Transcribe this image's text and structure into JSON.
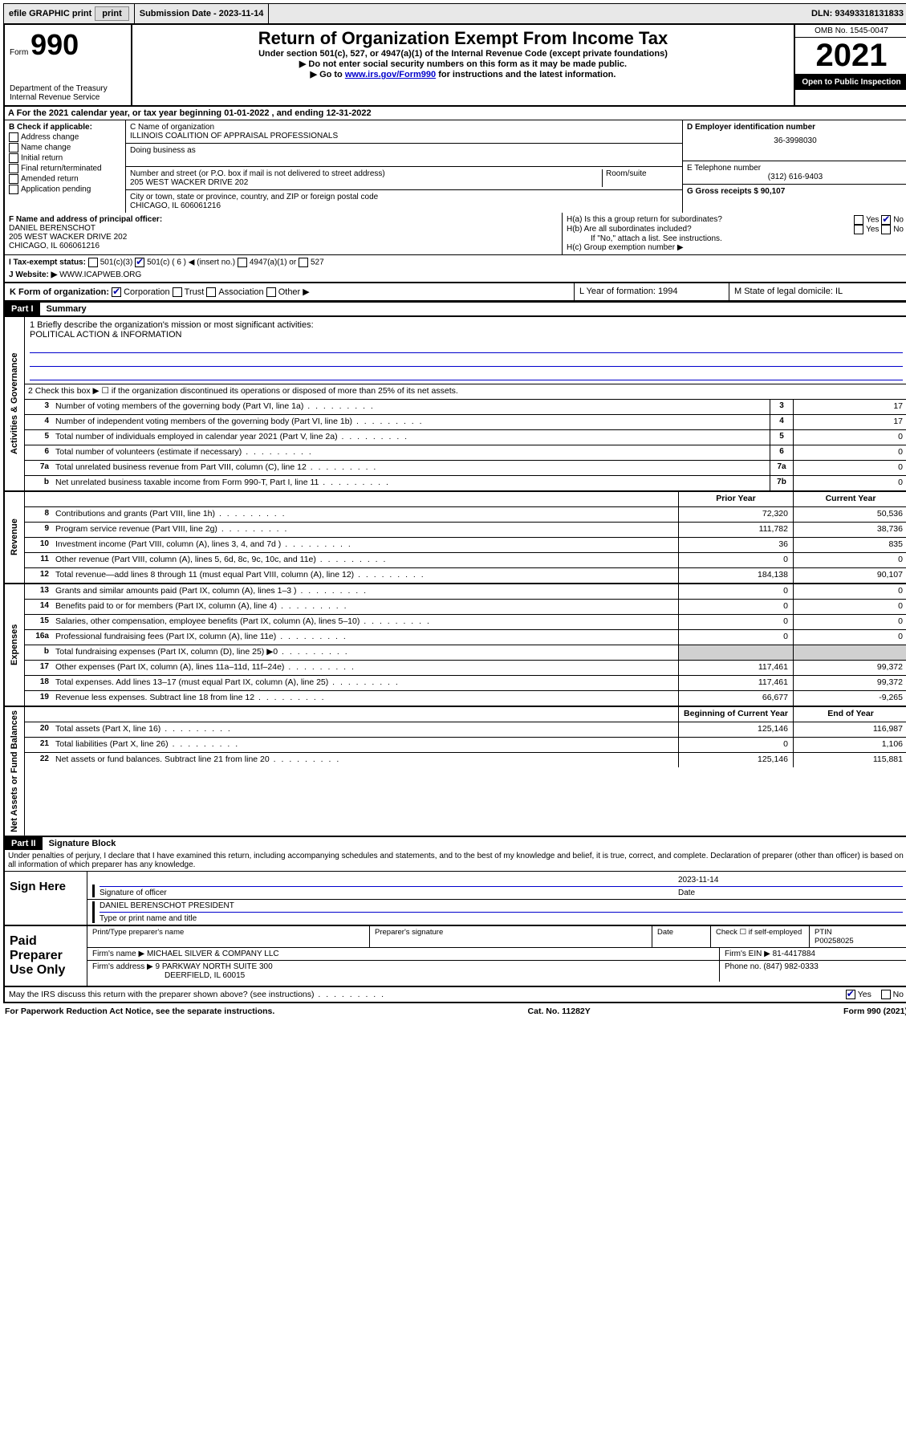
{
  "top_bar": {
    "efile": "efile GRAPHIC print",
    "submission_label": "Submission Date - 2023-11-14",
    "dln": "DLN: 93493318131833"
  },
  "header": {
    "form_word": "Form",
    "form_num": "990",
    "dept": "Department of the Treasury",
    "irs": "Internal Revenue Service",
    "title": "Return of Organization Exempt From Income Tax",
    "sub": "Under section 501(c), 527, or 4947(a)(1) of the Internal Revenue Code (except private foundations)",
    "note1": "▶ Do not enter social security numbers on this form as it may be made public.",
    "note2_pre": "▶ Go to ",
    "note2_link": "www.irs.gov/Form990",
    "note2_post": " for instructions and the latest information.",
    "omb": "OMB No. 1545-0047",
    "year": "2021",
    "inspection": "Open to Public Inspection"
  },
  "period": {
    "text": "For the 2021 calendar year, or tax year beginning 01-01-2022   , and ending 12-31-2022"
  },
  "box_b": {
    "label": "B Check if applicable:",
    "items": [
      "Address change",
      "Name change",
      "Initial return",
      "Final return/terminated",
      "Amended return",
      "Application pending"
    ]
  },
  "box_c": {
    "name_label": "C Name of organization",
    "name": "ILLINOIS COALITION OF APPRAISAL PROFESSIONALS",
    "dba_label": "Doing business as",
    "addr_label": "Number and street (or P.O. box if mail is not delivered to street address)",
    "room_label": "Room/suite",
    "addr": "205 WEST WACKER DRIVE 202",
    "city_label": "City or town, state or province, country, and ZIP or foreign postal code",
    "city": "CHICAGO, IL  606061216"
  },
  "box_d": {
    "label": "D Employer identification number",
    "value": "36-3998030"
  },
  "box_e": {
    "label": "E Telephone number",
    "value": "(312) 616-9403"
  },
  "box_g": {
    "label": "G Gross receipts $ 90,107"
  },
  "box_f": {
    "label": "F  Name and address of principal officer:",
    "name": "DANIEL BERENSCHOT",
    "addr1": "205 WEST WACKER DRIVE 202",
    "addr2": "CHICAGO, IL  606061216"
  },
  "box_h": {
    "a": "H(a)  Is this a group return for subordinates?",
    "b": "H(b)  Are all subordinates included?",
    "b_note": "If \"No,\" attach a list. See instructions.",
    "c": "H(c)  Group exemption number ▶",
    "yes": "Yes",
    "no": "No"
  },
  "box_i": {
    "label": "I   Tax-exempt status:",
    "opts": [
      "501(c)(3)",
      "501(c) ( 6 ) ◀ (insert no.)",
      "4947(a)(1) or",
      "527"
    ]
  },
  "box_j": {
    "label": "J   Website: ▶",
    "value": "WWW.ICAPWEB.ORG"
  },
  "box_k": {
    "label": "K Form of organization:",
    "opts": [
      "Corporation",
      "Trust",
      "Association",
      "Other ▶"
    ]
  },
  "box_l": {
    "label": "L Year of formation: 1994"
  },
  "box_m": {
    "label": "M State of legal domicile: IL"
  },
  "part1": {
    "header": "Part I",
    "title": "Summary",
    "mission_label": "1   Briefly describe the organization's mission or most significant activities:",
    "mission": "POLITICAL ACTION & INFORMATION",
    "line2": "2   Check this box ▶ ☐  if the organization discontinued its operations or disposed of more than 25% of its net assets."
  },
  "side_labels": {
    "gov": "Activities & Governance",
    "rev": "Revenue",
    "exp": "Expenses",
    "net": "Net Assets or Fund Balances"
  },
  "gov_lines": [
    {
      "n": "3",
      "t": "Number of voting members of the governing body (Part VI, line 1a)",
      "b": "3",
      "v": "17"
    },
    {
      "n": "4",
      "t": "Number of independent voting members of the governing body (Part VI, line 1b)",
      "b": "4",
      "v": "17"
    },
    {
      "n": "5",
      "t": "Total number of individuals employed in calendar year 2021 (Part V, line 2a)",
      "b": "5",
      "v": "0"
    },
    {
      "n": "6",
      "t": "Total number of volunteers (estimate if necessary)",
      "b": "6",
      "v": "0"
    },
    {
      "n": "7a",
      "t": "Total unrelated business revenue from Part VIII, column (C), line 12",
      "b": "7a",
      "v": "0"
    },
    {
      "n": "b",
      "t": "Net unrelated business taxable income from Form 990-T, Part I, line 11",
      "b": "7b",
      "v": "0"
    }
  ],
  "col_headers": {
    "prior": "Prior Year",
    "current": "Current Year",
    "begin": "Beginning of Current Year",
    "end": "End of Year"
  },
  "rev_lines": [
    {
      "n": "8",
      "t": "Contributions and grants (Part VIII, line 1h)",
      "p": "72,320",
      "c": "50,536"
    },
    {
      "n": "9",
      "t": "Program service revenue (Part VIII, line 2g)",
      "p": "111,782",
      "c": "38,736"
    },
    {
      "n": "10",
      "t": "Investment income (Part VIII, column (A), lines 3, 4, and 7d )",
      "p": "36",
      "c": "835"
    },
    {
      "n": "11",
      "t": "Other revenue (Part VIII, column (A), lines 5, 6d, 8c, 9c, 10c, and 11e)",
      "p": "0",
      "c": "0"
    },
    {
      "n": "12",
      "t": "Total revenue—add lines 8 through 11 (must equal Part VIII, column (A), line 12)",
      "p": "184,138",
      "c": "90,107"
    }
  ],
  "exp_lines": [
    {
      "n": "13",
      "t": "Grants and similar amounts paid (Part IX, column (A), lines 1–3 )",
      "p": "0",
      "c": "0"
    },
    {
      "n": "14",
      "t": "Benefits paid to or for members (Part IX, column (A), line 4)",
      "p": "0",
      "c": "0"
    },
    {
      "n": "15",
      "t": "Salaries, other compensation, employee benefits (Part IX, column (A), lines 5–10)",
      "p": "0",
      "c": "0"
    },
    {
      "n": "16a",
      "t": "Professional fundraising fees (Part IX, column (A), line 11e)",
      "p": "0",
      "c": "0"
    },
    {
      "n": "b",
      "t": "Total fundraising expenses (Part IX, column (D), line 25) ▶0",
      "p": "",
      "c": "",
      "shaded": true
    },
    {
      "n": "17",
      "t": "Other expenses (Part IX, column (A), lines 11a–11d, 11f–24e)",
      "p": "117,461",
      "c": "99,372"
    },
    {
      "n": "18",
      "t": "Total expenses. Add lines 13–17 (must equal Part IX, column (A), line 25)",
      "p": "117,461",
      "c": "99,372"
    },
    {
      "n": "19",
      "t": "Revenue less expenses. Subtract line 18 from line 12",
      "p": "66,677",
      "c": "-9,265"
    }
  ],
  "net_lines": [
    {
      "n": "20",
      "t": "Total assets (Part X, line 16)",
      "p": "125,146",
      "c": "116,987"
    },
    {
      "n": "21",
      "t": "Total liabilities (Part X, line 26)",
      "p": "0",
      "c": "1,106"
    },
    {
      "n": "22",
      "t": "Net assets or fund balances. Subtract line 21 from line 20",
      "p": "125,146",
      "c": "115,881"
    }
  ],
  "part2": {
    "header": "Part II",
    "title": "Signature Block",
    "decl": "Under penalties of perjury, I declare that I have examined this return, including accompanying schedules and statements, and to the best of my knowledge and belief, it is true, correct, and complete. Declaration of preparer (other than officer) is based on all information of which preparer has any knowledge."
  },
  "sign": {
    "here": "Sign Here",
    "sig_label": "Signature of officer",
    "date_label": "Date",
    "date": "2023-11-14",
    "name": "DANIEL BERENSCHOT PRESIDENT",
    "name_label": "Type or print name and title"
  },
  "paid": {
    "title": "Paid Preparer Use Only",
    "h1": "Print/Type preparer's name",
    "h2": "Preparer's signature",
    "h3": "Date",
    "h4_pre": "Check ☐ if self-employed",
    "h5": "PTIN",
    "ptin": "P00258025",
    "firm_label": "Firm's name    ▶",
    "firm": "MICHAEL SILVER & COMPANY LLC",
    "ein_label": "Firm's EIN ▶",
    "ein": "81-4417884",
    "addr_label": "Firm's address ▶",
    "addr1": "9 PARKWAY NORTH SUITE 300",
    "addr2": "DEERFIELD, IL  60015",
    "phone_label": "Phone no.",
    "phone": "(847) 982-0333"
  },
  "discuss": {
    "q": "May the IRS discuss this return with the preparer shown above? (see instructions)",
    "yes": "Yes",
    "no": "No"
  },
  "footer": {
    "left": "For Paperwork Reduction Act Notice, see the separate instructions.",
    "mid": "Cat. No. 11282Y",
    "right": "Form 990 (2021)"
  }
}
